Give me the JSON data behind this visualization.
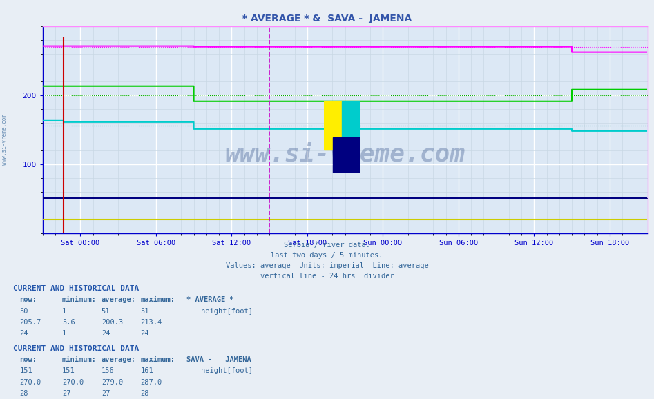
{
  "title": "* AVERAGE * &  SAVA -  JAMENA",
  "subtitle_lines": [
    "Serbia / river data.",
    "last two days / 5 minutes.",
    "Values: average  Units: imperial  Line: average",
    "vertical line - 24 hrs  divider"
  ],
  "xlabel_ticks": [
    "Sat 00:00",
    "Sat 06:00",
    "Sat 12:00",
    "Sat 18:00",
    "Sun 00:00",
    "Sun 06:00",
    "Sun 12:00",
    "Sun 18:00"
  ],
  "tick_positions": [
    36,
    108,
    180,
    252,
    324,
    396,
    468,
    540
  ],
  "ylabel": "",
  "ylim": [
    0,
    300
  ],
  "xlim": [
    0,
    576
  ],
  "yticks": [
    100,
    200
  ],
  "background_color": "#e8eef5",
  "plot_bg_color": "#dce8f5",
  "grid_color_major": "#c0d0e0",
  "grid_color_minor": "#d0dde8",
  "title_color": "#3355aa",
  "axis_color": "#0000cc",
  "text_color": "#336699",
  "header_color": "#2255aa",
  "watermark": "www.si-vreme.com",
  "n_points": 576,
  "vline_x": 216,
  "vline_color": "#cc00cc",
  "magenta_dotted_y": 270,
  "green_dotted_y": 200,
  "cyan_dotted_y": 156,
  "blue_dotted_y": 51,
  "blue_y": 51,
  "yellow_y": 20,
  "red_spike_x": 20,
  "red_spike_y_top": 283,
  "table1": {
    "header": "CURRENT AND HISTORICAL DATA",
    "col_headers": [
      "now:",
      "minimum:",
      "average:",
      "maximum:",
      "* AVERAGE *"
    ],
    "row1": [
      "50",
      "1",
      "51",
      "51",
      "height[foot]"
    ],
    "row2": [
      "205.7",
      "5.6",
      "200.3",
      "213.4",
      ""
    ],
    "row3": [
      "24",
      "1",
      "24",
      "24",
      ""
    ],
    "swatch_color": "#000080"
  },
  "table2": {
    "header": "CURRENT AND HISTORICAL DATA",
    "col_headers": [
      "now:",
      "minimum:",
      "average:",
      "maximum:",
      "SAVA -   JAMENA"
    ],
    "row1": [
      "151",
      "151",
      "156",
      "161",
      "height[foot]"
    ],
    "row2": [
      "270.0",
      "270.0",
      "279.0",
      "287.0",
      ""
    ],
    "row3": [
      "28",
      "27",
      "27",
      "28",
      ""
    ],
    "swatch_color": "#00cccc"
  }
}
